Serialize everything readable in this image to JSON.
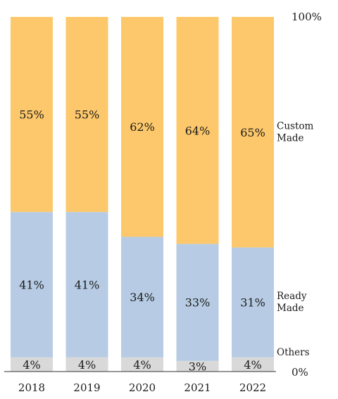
{
  "chart_data": {
    "type": "bar",
    "stacked": true,
    "percent": true,
    "categories": [
      "2018",
      "2019",
      "2020",
      "2021",
      "2022"
    ],
    "series": [
      {
        "name": "Others",
        "values": [
          4,
          4,
          4,
          3,
          4
        ],
        "color": "#d9d9d9"
      },
      {
        "name": "Ready Made",
        "values": [
          41,
          41,
          34,
          33,
          31
        ],
        "color": "#b7cce4"
      },
      {
        "name": "Custom Made",
        "values": [
          55,
          55,
          62,
          64,
          65
        ],
        "color": "#fdc86b"
      }
    ],
    "data_labels": [
      [
        "4%",
        "4%",
        "4%",
        "3%",
        "4%"
      ],
      [
        "41%",
        "41%",
        "34%",
        "33%",
        "31%"
      ],
      [
        "55%",
        "55%",
        "62%",
        "64%",
        "65%"
      ]
    ],
    "legend_lines": [
      [
        "Others"
      ],
      [
        "Ready",
        "Made"
      ],
      [
        "Custom",
        "Made"
      ]
    ],
    "y_top_label": "100%",
    "y_bottom_label": "0%",
    "ylim": [
      0,
      100
    ],
    "legend_position": "right",
    "grid": false
  }
}
